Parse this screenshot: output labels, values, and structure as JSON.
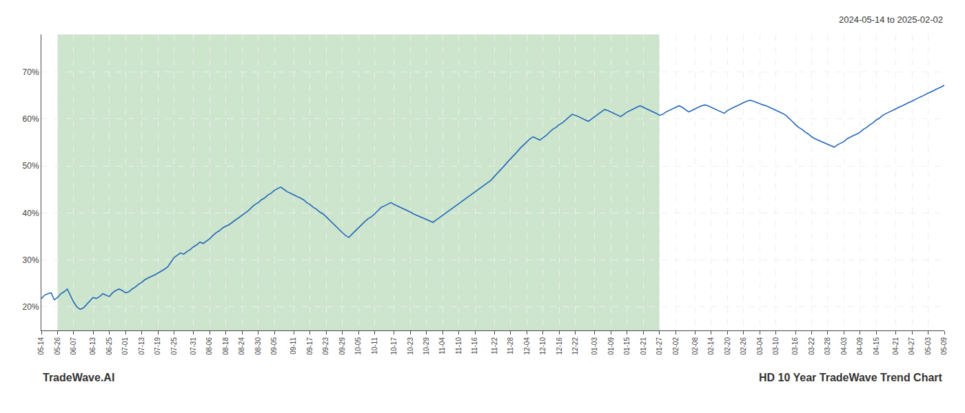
{
  "chart_data": {
    "type": "line",
    "annotations": [
      "2024-05-14 to 2025-02-02",
      "TradeWave.AI",
      "HD 10 Year TradeWave Trend Chart"
    ],
    "color": "#2266bb",
    "grid": true,
    "ylim": [
      0.15,
      0.78
    ],
    "yticks": [
      {
        "value": 0.2,
        "label": "20%"
      },
      {
        "value": 0.3,
        "label": "30%"
      },
      {
        "value": 0.4,
        "label": "40%"
      },
      {
        "value": 0.5,
        "label": "50%"
      },
      {
        "value": 0.6,
        "label": "60%"
      },
      {
        "value": 0.7,
        "label": "70%"
      }
    ],
    "shaded": {
      "from": "05-26",
      "to": "01-27",
      "color": "#cce5cc"
    },
    "categories": [
      "05-14",
      null,
      null,
      null,
      null,
      "05-26",
      null,
      null,
      null,
      null,
      "06-07",
      null,
      null,
      null,
      null,
      null,
      "06-13",
      null,
      null,
      null,
      null,
      "06-25",
      null,
      null,
      null,
      null,
      "07-01",
      null,
      null,
      null,
      null,
      "07-13",
      null,
      null,
      null,
      null,
      "07-19",
      null,
      null,
      null,
      null,
      "07-25",
      null,
      null,
      null,
      null,
      null,
      "07-31",
      null,
      null,
      null,
      null,
      "08-06",
      null,
      null,
      null,
      null,
      "08-18",
      null,
      null,
      null,
      null,
      "08-24",
      null,
      null,
      null,
      null,
      "08-30",
      null,
      null,
      null,
      null,
      "09-05",
      null,
      null,
      null,
      null,
      null,
      "09-11",
      null,
      null,
      null,
      null,
      "09-17",
      null,
      null,
      null,
      null,
      "09-23",
      null,
      null,
      null,
      null,
      "09-29",
      null,
      null,
      null,
      null,
      "10-05",
      null,
      null,
      null,
      null,
      "10-11",
      null,
      null,
      null,
      null,
      null,
      "10-17",
      null,
      null,
      null,
      null,
      "10-23",
      null,
      null,
      null,
      null,
      "10-29",
      null,
      null,
      null,
      null,
      "11-04",
      null,
      null,
      null,
      null,
      "11-10",
      null,
      null,
      null,
      null,
      "11-16",
      null,
      null,
      null,
      null,
      null,
      "11-22",
      null,
      null,
      null,
      null,
      "11-28",
      null,
      null,
      null,
      null,
      "12-04",
      null,
      null,
      null,
      null,
      "12-10",
      null,
      null,
      null,
      null,
      "12-16",
      null,
      null,
      null,
      null,
      "12-22",
      null,
      null,
      null,
      null,
      null,
      "01-03",
      null,
      null,
      null,
      null,
      "01-09",
      null,
      null,
      null,
      null,
      "01-15",
      null,
      null,
      null,
      null,
      "01-21",
      null,
      null,
      null,
      null,
      "01-27",
      null,
      null,
      null,
      null,
      "02-02",
      null,
      null,
      null,
      null,
      null,
      "02-08",
      null,
      null,
      null,
      null,
      "02-14",
      null,
      null,
      null,
      null,
      "02-20",
      null,
      null,
      null,
      null,
      "02-26",
      null,
      null,
      null,
      null,
      "03-04",
      null,
      null,
      null,
      null,
      "03-10",
      null,
      null,
      null,
      null,
      null,
      "03-16",
      null,
      null,
      null,
      null,
      "03-22",
      null,
      null,
      null,
      null,
      "03-28",
      null,
      null,
      null,
      null,
      "04-03",
      null,
      null,
      null,
      null,
      "04-09",
      null,
      null,
      null,
      null,
      "04-15",
      null,
      null,
      null,
      null,
      null,
      "04-21",
      null,
      null,
      null,
      null,
      "04-27",
      null,
      null,
      null,
      null,
      "05-03",
      null,
      null,
      null,
      null,
      "05-09"
    ],
    "values": [
      0.218,
      0.225,
      0.228,
      0.23,
      0.215,
      0.22,
      0.228,
      0.232,
      0.238,
      0.225,
      0.21,
      0.2,
      0.195,
      0.198,
      0.205,
      0.212,
      0.22,
      0.218,
      0.222,
      0.228,
      0.225,
      0.222,
      0.23,
      0.235,
      0.238,
      0.235,
      0.23,
      0.232,
      0.238,
      0.242,
      0.248,
      0.252,
      0.258,
      0.262,
      0.265,
      0.268,
      0.272,
      0.275,
      0.28,
      0.285,
      0.295,
      0.305,
      0.31,
      0.315,
      0.312,
      0.318,
      0.322,
      0.328,
      0.332,
      0.338,
      0.335,
      0.34,
      0.345,
      0.352,
      0.358,
      0.362,
      0.368,
      0.372,
      0.375,
      0.38,
      0.385,
      0.39,
      0.395,
      0.4,
      0.405,
      0.412,
      0.418,
      0.422,
      0.428,
      0.432,
      0.438,
      0.442,
      0.448,
      0.452,
      0.455,
      0.45,
      0.445,
      0.442,
      0.438,
      0.435,
      0.432,
      0.428,
      0.422,
      0.418,
      0.412,
      0.408,
      0.402,
      0.398,
      0.392,
      0.385,
      0.378,
      0.372,
      0.365,
      0.358,
      0.352,
      0.348,
      0.355,
      0.362,
      0.368,
      0.375,
      0.382,
      0.388,
      0.392,
      0.398,
      0.405,
      0.412,
      0.415,
      0.418,
      0.422,
      0.418,
      0.415,
      0.412,
      0.408,
      0.405,
      0.402,
      0.398,
      0.395,
      0.392,
      0.388,
      0.385,
      0.382,
      0.38,
      0.385,
      0.39,
      0.395,
      0.4,
      0.405,
      0.41,
      0.415,
      0.42,
      0.425,
      0.43,
      0.435,
      0.44,
      0.445,
      0.45,
      0.455,
      0.46,
      0.465,
      0.47,
      0.478,
      0.485,
      0.492,
      0.5,
      0.508,
      0.515,
      0.522,
      0.53,
      0.538,
      0.545,
      0.552,
      0.558,
      0.562,
      0.558,
      0.555,
      0.56,
      0.565,
      0.572,
      0.578,
      0.582,
      0.588,
      0.592,
      0.598,
      0.605,
      0.61,
      0.608,
      0.605,
      0.602,
      0.598,
      0.595,
      0.6,
      0.605,
      0.61,
      0.615,
      0.62,
      0.618,
      0.615,
      0.612,
      0.608,
      0.605,
      0.61,
      0.615,
      0.618,
      0.622,
      0.625,
      0.628,
      0.625,
      0.622,
      0.618,
      0.615,
      0.612,
      0.608,
      0.61,
      0.615,
      0.618,
      0.622,
      0.625,
      0.628,
      0.625,
      0.62,
      0.615,
      0.618,
      0.622,
      0.625,
      0.628,
      0.63,
      0.628,
      0.625,
      0.622,
      0.618,
      0.615,
      0.612,
      0.618,
      0.622,
      0.625,
      0.628,
      0.632,
      0.635,
      0.638,
      0.64,
      0.638,
      0.635,
      0.632,
      0.63,
      0.628,
      0.625,
      0.622,
      0.618,
      0.615,
      0.612,
      0.608,
      0.602,
      0.595,
      0.588,
      0.582,
      0.578,
      0.572,
      0.568,
      0.562,
      0.558,
      0.555,
      0.552,
      0.548,
      0.545,
      0.542,
      0.54,
      0.545,
      0.548,
      0.552,
      0.558,
      0.562,
      0.565,
      0.568,
      0.572,
      0.578,
      0.582,
      0.588,
      0.592,
      0.598,
      0.602,
      0.608,
      0.612,
      0.615,
      0.618,
      0.622,
      0.625,
      0.628,
      0.632,
      0.635,
      0.638,
      0.642,
      0.645,
      0.648,
      0.652,
      0.655,
      0.658,
      0.662,
      0.665,
      0.668,
      0.672
    ]
  }
}
